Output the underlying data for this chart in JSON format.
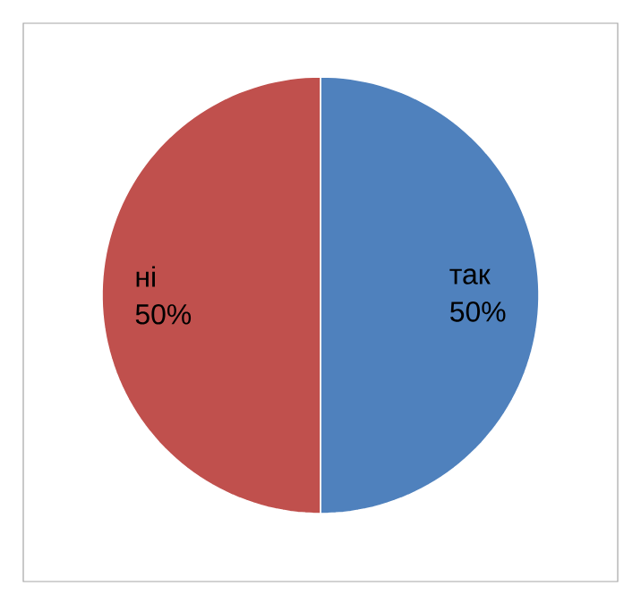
{
  "chart_data": {
    "type": "pie",
    "categories": [
      "так",
      "ні"
    ],
    "values": [
      50,
      50
    ],
    "colors": [
      "#4f81bd",
      "#c0504d"
    ],
    "value_labels": [
      "50%",
      "50%"
    ]
  }
}
